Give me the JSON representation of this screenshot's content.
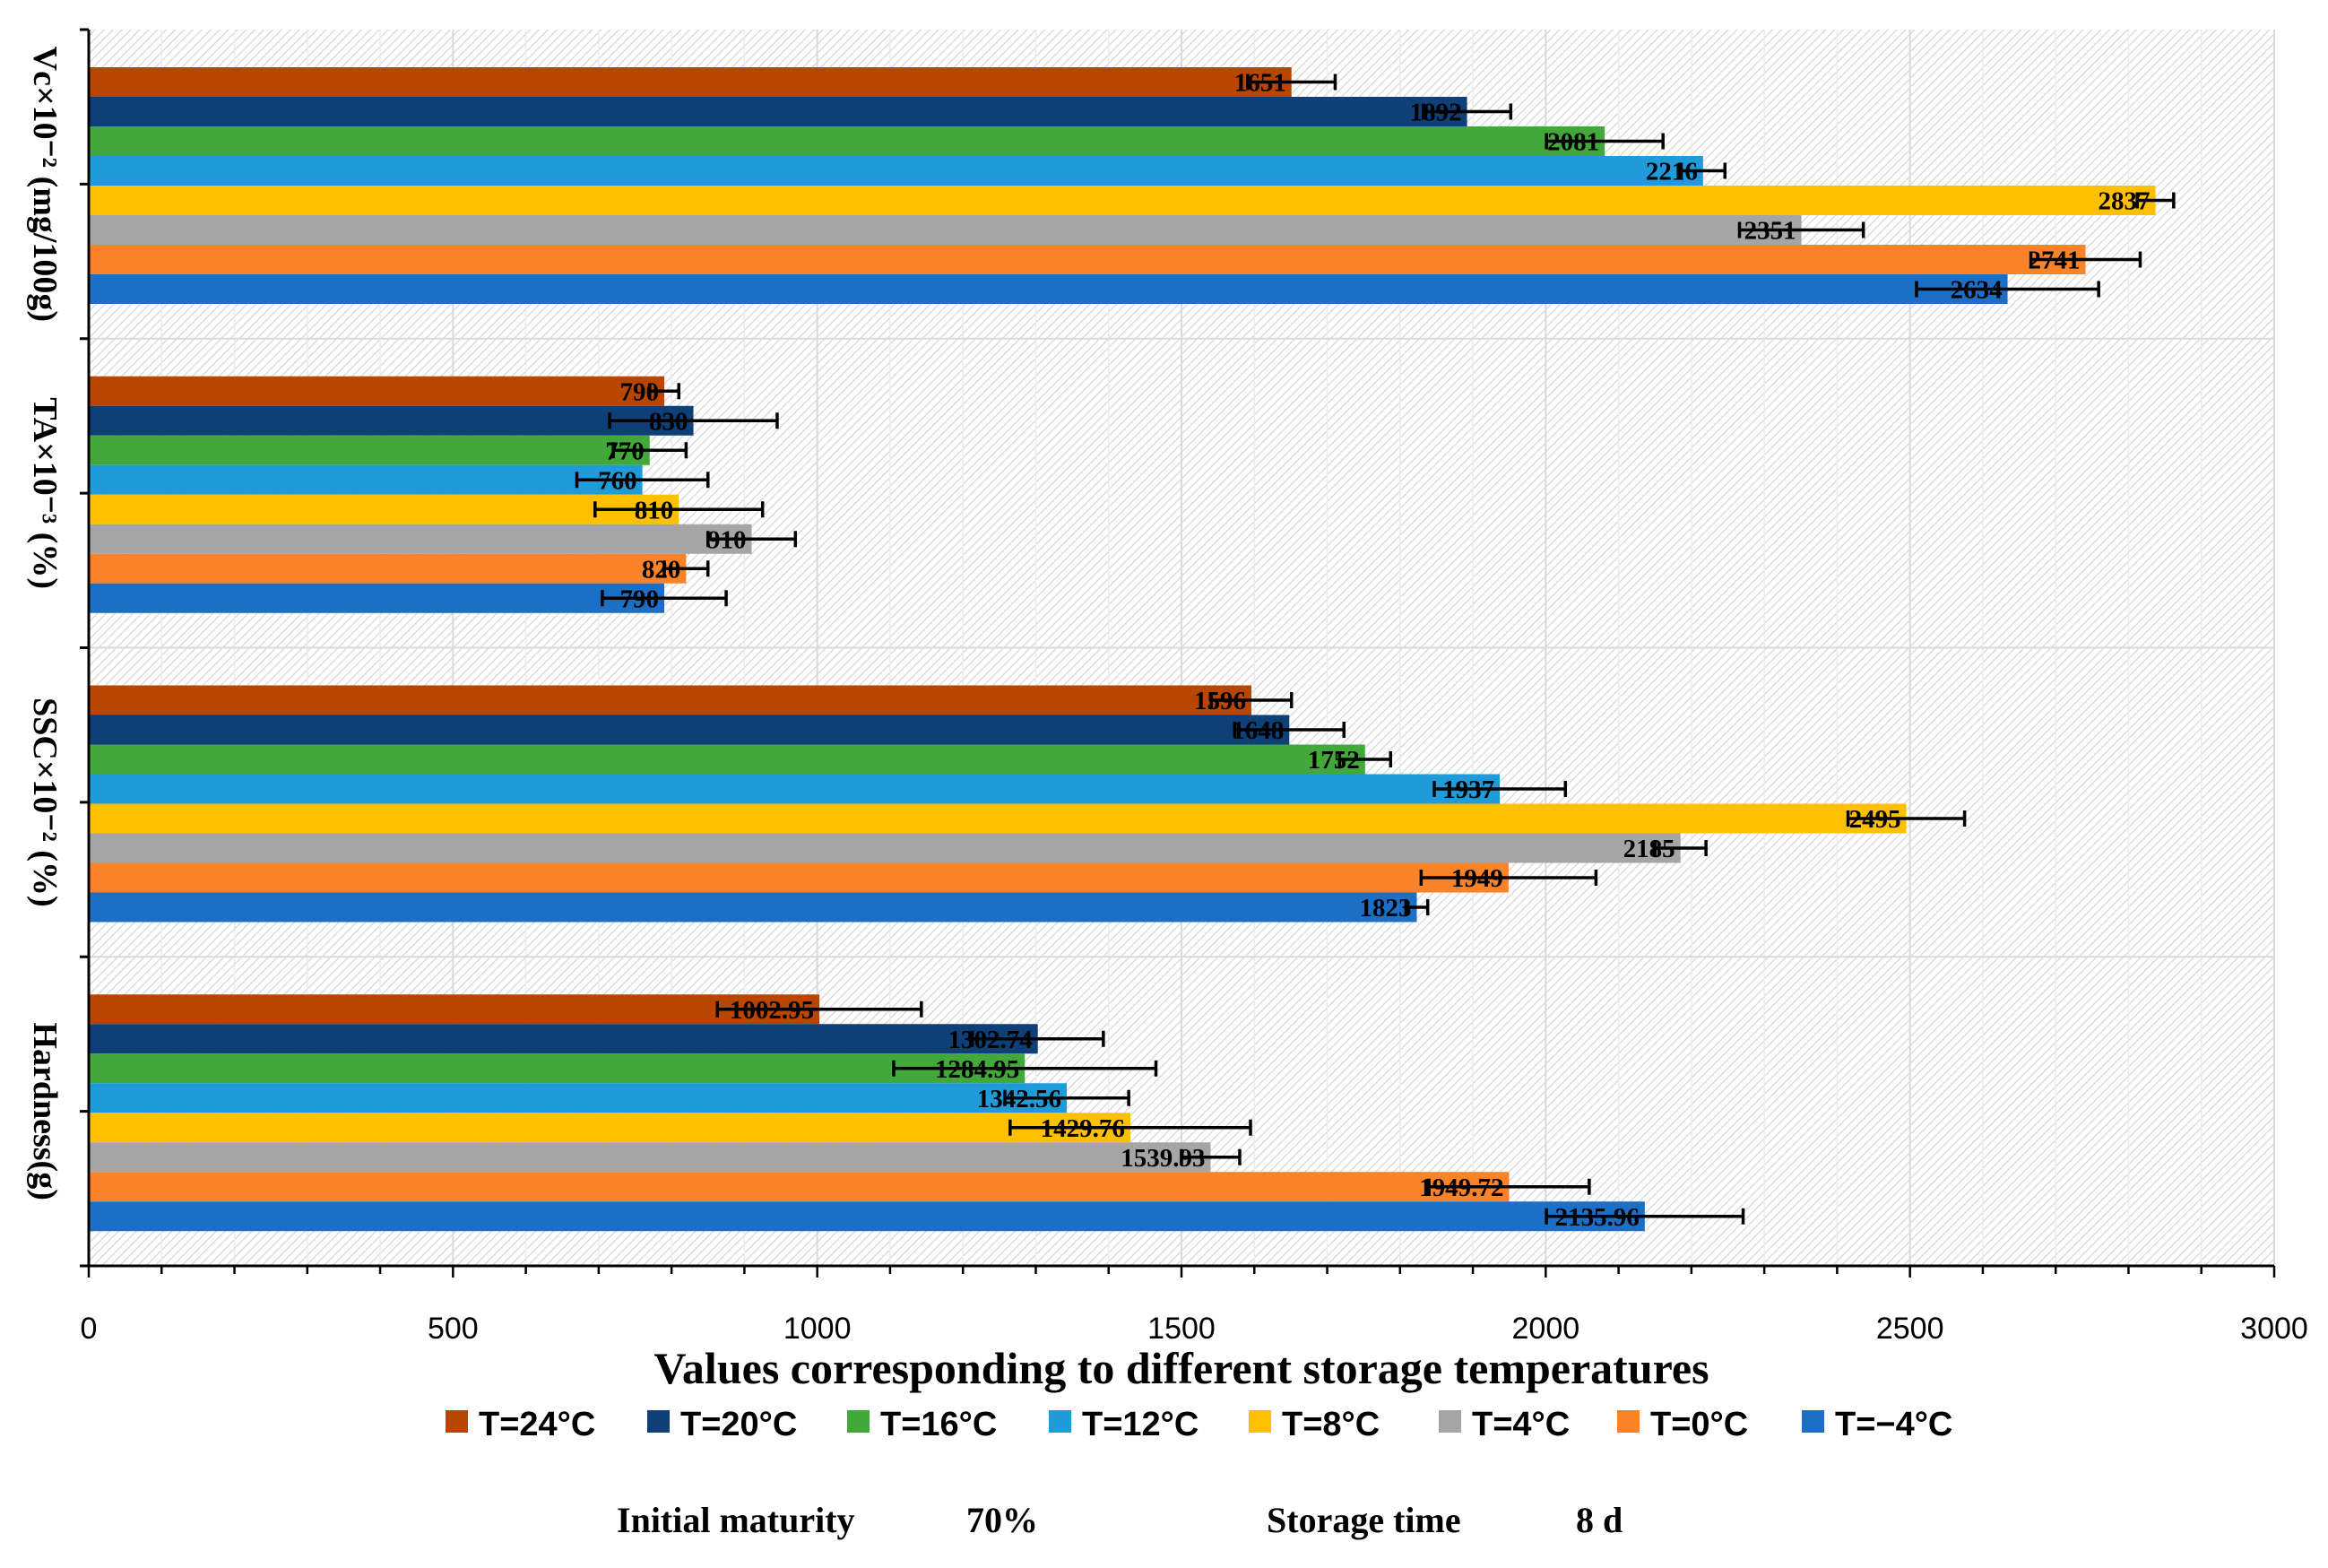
{
  "chart_data": {
    "type": "bar",
    "orientation": "horizontal",
    "xlabel": "Values corresponding to different storage temperatures",
    "xlim": [
      0,
      3000
    ],
    "xticks": [
      0,
      500,
      1000,
      1500,
      2000,
      2500,
      3000
    ],
    "groups": [
      {
        "label": "Vc×10⁻² (mg/100g)",
        "values": [
          1651,
          1892,
          2081,
          2216,
          2837,
          2351,
          2741,
          2634
        ],
        "errors": [
          60,
          60,
          80,
          30,
          25,
          85,
          75,
          125
        ],
        "labels": [
          "1651",
          "1892",
          "2081",
          "2216",
          "2837",
          "2351",
          "2741",
          "2634"
        ]
      },
      {
        "label": "TA×10⁻³ (%)",
        "values": [
          790,
          830,
          770,
          760,
          810,
          910,
          820,
          790
        ],
        "errors": [
          20,
          115,
          50,
          90,
          115,
          60,
          30,
          85
        ],
        "labels": [
          "790",
          "830",
          "770",
          "760",
          "810",
          "910",
          "820",
          "790"
        ]
      },
      {
        "label": "SSC×10⁻² (%)",
        "values": [
          1596,
          1648,
          1752,
          1937,
          2495,
          2185,
          1949,
          1823
        ],
        "errors": [
          55,
          75,
          35,
          90,
          80,
          35,
          120,
          15
        ],
        "labels": [
          "1596",
          "1648",
          "1752",
          "1937",
          "2495",
          "2185",
          "1949",
          "1823"
        ]
      },
      {
        "label": "Hardness(g)",
        "values": [
          1002.95,
          1302.74,
          1284.95,
          1342.56,
          1429.76,
          1539.93,
          1949.72,
          2135.96
        ],
        "errors": [
          140,
          90,
          180,
          85,
          165,
          40,
          110,
          135
        ],
        "labels": [
          "1002.95",
          "1302.74",
          "1284.95",
          "1342.56",
          "1429.76",
          "1539.93",
          "1949.72",
          "2135.96"
        ]
      }
    ],
    "series": [
      {
        "name": "T=24°C",
        "color": "#b84600"
      },
      {
        "name": "T=20°C",
        "color": "#0e3f76"
      },
      {
        "name": "T=16°C",
        "color": "#43a83a"
      },
      {
        "name": "T=12°C",
        "color": "#1e9bd8"
      },
      {
        "name": "T=8°C",
        "color": "#ffc000"
      },
      {
        "name": "T=4°C",
        "color": "#a5a5a5"
      },
      {
        "name": "T=0°C",
        "color": "#fa8228"
      },
      {
        "name": "T=−4°C",
        "color": "#1d6fc5"
      }
    ],
    "legend": "bottom"
  },
  "footer": {
    "maturity_label": "Initial  maturity",
    "maturity_value": "70%",
    "storage_label": "Storage time",
    "storage_value": "8 d"
  }
}
